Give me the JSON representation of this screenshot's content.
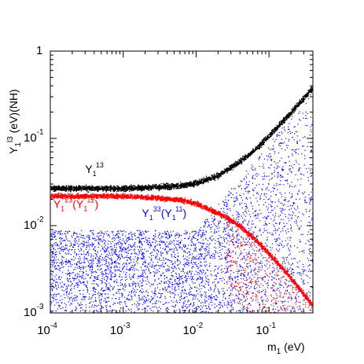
{
  "chart_data": {
    "type": "scatter",
    "xscale": "log",
    "yscale": "log",
    "xlim": [
      0.0001,
      0.4
    ],
    "ylim": [
      0.001,
      1
    ],
    "grid": false,
    "ylabel_parts": [
      "Y",
      "1",
      "l3",
      " (eV)(NH)"
    ],
    "xlabel_parts": [
      "m",
      "1",
      " (eV)"
    ],
    "x_ticks": [
      {
        "value": 0.0001,
        "base": "10",
        "exp": "-4"
      },
      {
        "value": 0.001,
        "base": "10",
        "exp": "-3"
      },
      {
        "value": 0.01,
        "base": "10",
        "exp": "-2"
      },
      {
        "value": 0.1,
        "base": "10",
        "exp": "-1"
      }
    ],
    "y_ticks": [
      {
        "value": 1,
        "base": "1",
        "exp": ""
      },
      {
        "value": 0.1,
        "base": "10",
        "exp": "-1"
      },
      {
        "value": 0.01,
        "base": "10",
        "exp": "-2"
      },
      {
        "value": 0.001,
        "base": "10",
        "exp": "-3"
      }
    ],
    "series": [
      {
        "color": "#000000",
        "band_log_halfwidth": 0.045,
        "points": [
          [
            0.0001,
            0.027
          ],
          [
            0.001,
            0.027
          ],
          [
            0.003,
            0.028
          ],
          [
            0.006,
            0.029
          ],
          [
            0.01,
            0.031
          ],
          [
            0.02,
            0.038
          ],
          [
            0.04,
            0.055
          ],
          [
            0.07,
            0.08
          ],
          [
            0.1,
            0.11
          ],
          [
            0.2,
            0.2
          ],
          [
            0.4,
            0.39
          ]
        ]
      },
      {
        "color": "#ff0000",
        "band_log_halfwidth": 0.04,
        "points": [
          [
            0.0001,
            0.022
          ],
          [
            0.001,
            0.022
          ],
          [
            0.003,
            0.021
          ],
          [
            0.006,
            0.02
          ],
          [
            0.01,
            0.018
          ],
          [
            0.02,
            0.014
          ],
          [
            0.04,
            0.01
          ],
          [
            0.07,
            0.0065
          ],
          [
            0.1,
            0.0048
          ],
          [
            0.2,
            0.0025
          ],
          [
            0.4,
            0.0012
          ]
        ]
      },
      {
        "color": "#0000ff",
        "scatter": true,
        "region": "broad cloud from m1=1e-4 to 0.4 eV, Y between ~1e-3 and ~1e-2, widening to ~0.1 at large m1"
      }
    ],
    "annotations": [
      {
        "color": "#000000",
        "parts": [
          "Y",
          "1",
          "13"
        ],
        "x": 0.0003,
        "y": 0.04
      },
      {
        "color": "#ff0000",
        "parts": [
          "Y",
          "1",
          "23",
          "(Y",
          "1",
          "12",
          ")"
        ],
        "x": 0.00011,
        "y": 0.016
      },
      {
        "color": "#0000ff",
        "parts": [
          "Y",
          "1",
          "33",
          "(Y",
          "1",
          "11",
          ")"
        ],
        "x": 0.0018,
        "y": 0.0125
      }
    ]
  }
}
